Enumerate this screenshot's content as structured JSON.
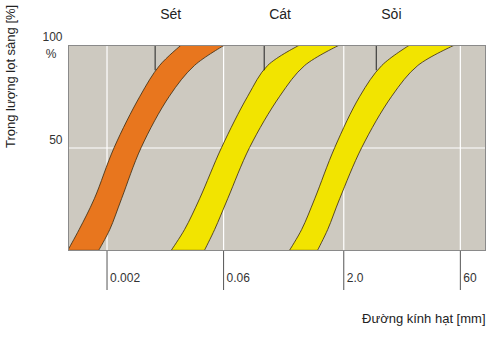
{
  "chart_data": {
    "type": "area_band",
    "x_label": "Đường kính hạt [mm]",
    "y_label": "Trọng lượng lọt sàng [%]",
    "annotations": [
      "%"
    ],
    "log": "x",
    "grid": true,
    "xlim": [
      0.00065,
      125
    ],
    "xticks": [
      0.002,
      0.06,
      {
        "value": 2,
        "label": "2.0"
      },
      60
    ],
    "ylim": [
      0,
      100
    ],
    "yticks": [
      50,
      100
    ],
    "y": [
      0,
      10,
      25,
      50,
      75,
      90,
      100
    ],
    "series": [
      {
        "name": "Sét",
        "color": "#e8761e",
        "x_lower": [
          0.00065,
          0.0009,
          0.0014,
          0.0025,
          0.0053,
          0.0094,
          0.0177
        ],
        "x_upper": [
          0.0016,
          0.0022,
          0.0031,
          0.0055,
          0.0125,
          0.026,
          0.063
        ]
      },
      {
        "name": "Cát",
        "color": "#f2e400",
        "x_lower": [
          0.0133,
          0.0195,
          0.0302,
          0.0574,
          0.123,
          0.22,
          0.561
        ],
        "x_upper": [
          0.035,
          0.0469,
          0.0686,
          0.13,
          0.313,
          0.649,
          1.8
        ]
      },
      {
        "name": "Sỏi",
        "color": "#f2e400",
        "x_lower": [
          0.419,
          0.594,
          0.869,
          1.56,
          3.24,
          6.15,
          13.9
        ],
        "x_upper": [
          0.948,
          1.27,
          1.8,
          3.43,
          8.22,
          17.6,
          51.8
        ]
      }
    ]
  }
}
